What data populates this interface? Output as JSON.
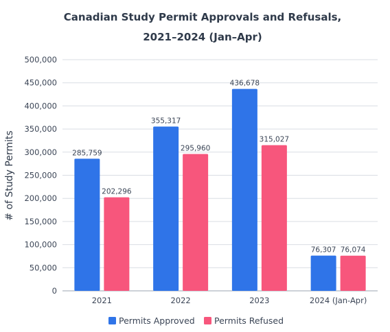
{
  "chart_data": {
    "type": "bar",
    "title_lines": [
      "Canadian Study Permit Approvals and Refusals,",
      "2021–2024 (Jan–Apr)"
    ],
    "ylabel": "# of Study Permits",
    "xlabel": "",
    "categories": [
      "2021",
      "2022",
      "2023",
      "2024 (Jan-Apr)"
    ],
    "series": [
      {
        "name": "Permits Approved",
        "values": [
          285759,
          355317,
          436678,
          76307
        ],
        "labels": [
          "285,759",
          "355,317",
          "436,678",
          "76,307"
        ],
        "color": "#2f74e8"
      },
      {
        "name": "Permits Refused",
        "values": [
          202296,
          295960,
          315027,
          76074
        ],
        "labels": [
          "202,296",
          "295,960",
          "315,027",
          "76,074"
        ],
        "color": "#f7567c"
      }
    ],
    "ylim": [
      0,
      500000
    ],
    "yticks": [
      0,
      50000,
      100000,
      150000,
      200000,
      250000,
      300000,
      350000,
      400000,
      450000,
      500000
    ],
    "ytick_labels": [
      "0",
      "50,000",
      "100,000",
      "150,000",
      "200,000",
      "250,000",
      "300,000",
      "350,000",
      "400,000",
      "450,000",
      "500,000"
    ],
    "grid": true,
    "legend_position": "bottom-center"
  }
}
